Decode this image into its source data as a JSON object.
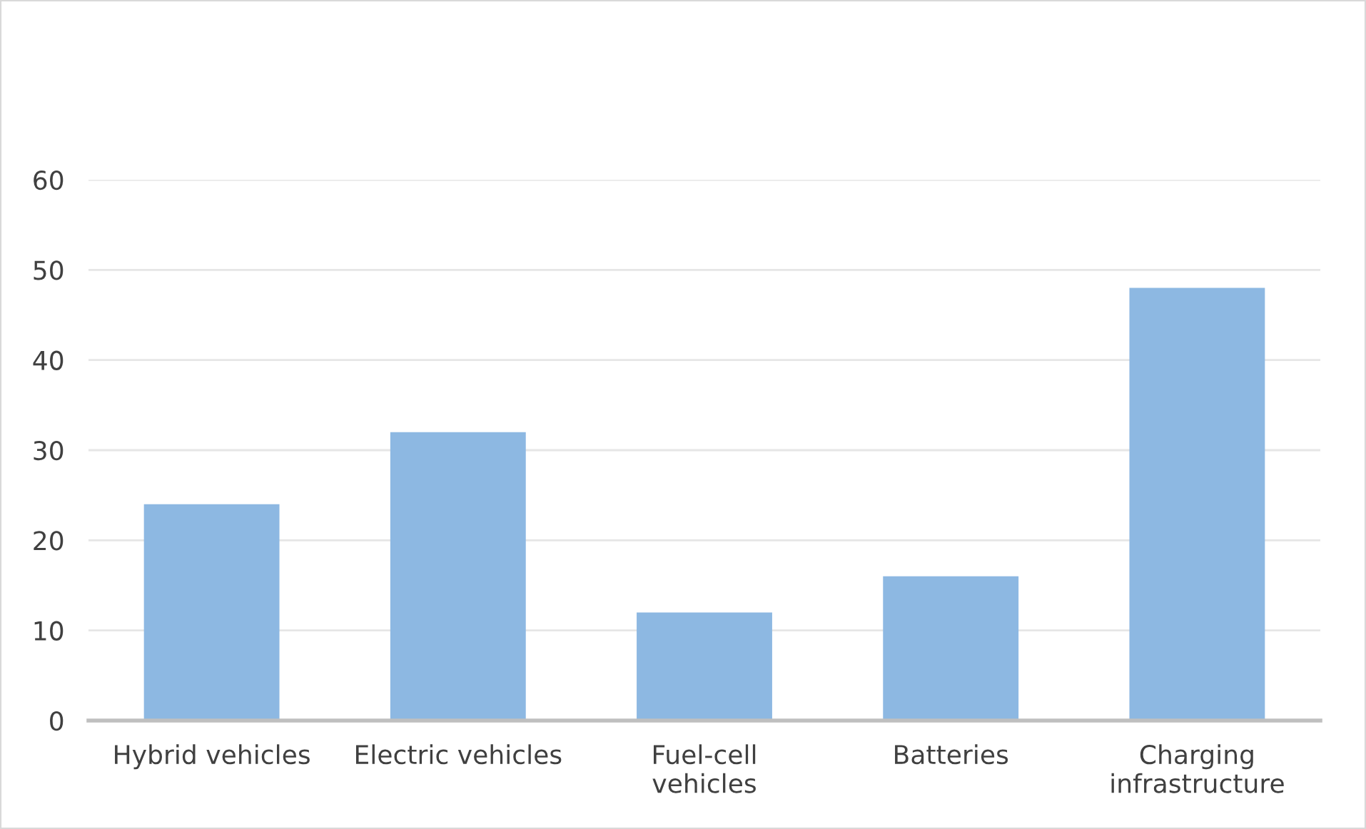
{
  "chart_data": {
    "type": "bar",
    "categories": [
      "Hybrid vehicles",
      "Electric vehicles",
      "Fuel-cell\nvehicles",
      "Batteries",
      "Charging\ninfrastructure"
    ],
    "values": [
      24,
      32,
      12,
      16,
      48
    ],
    "color": "#8db8e2",
    "ylim": [
      0,
      60
    ],
    "yticks": [
      0,
      10,
      20,
      30,
      40,
      50,
      60
    ],
    "grid": "y",
    "legend": false
  }
}
